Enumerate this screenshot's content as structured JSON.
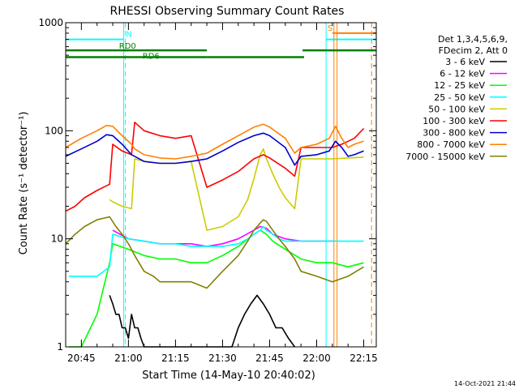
{
  "chart_data": {
    "type": "line",
    "title": "RHESSI Observing Summary Count Rates",
    "xlabel": "Start Time (14-May-10 20:40:02)",
    "ylabel": "Count Rate (s⁻¹ detector⁻¹)",
    "yscale": "log",
    "ylim": [
      1,
      1000
    ],
    "xlim_minutes_after_start": [
      0,
      99
    ],
    "x_tick_labels": [
      "20:45",
      "21:00",
      "21:15",
      "21:30",
      "21:45",
      "22:00",
      "22:15"
    ],
    "x_tick_minutes": [
      5,
      20,
      35,
      50,
      65,
      80,
      95
    ],
    "y_tick_labels": [
      "1",
      "10",
      "100",
      "1000"
    ],
    "y_tick_values": [
      1,
      10,
      100,
      1000
    ],
    "footer_date": "14-Oct-2021 21:44",
    "legend_header": [
      "Det 1,3,4,5,6,9,",
      "FDecim 2, Att 0"
    ],
    "legend_placement": "right",
    "annotations": {
      "night_label": "N",
      "saa_label": "S",
      "rd0_label": "RD0",
      "rd6_label": "RD6",
      "night_color": "#00ffff",
      "saa_color": "#ff8000",
      "rd_color": "#008000",
      "night_intervals": [
        [
          0,
          18.5
        ],
        [
          83,
          99
        ]
      ],
      "night_dashed_at": [
        19
      ],
      "saa_interval": [
        85,
        99
      ],
      "saa_lines_at": [
        85.5,
        86.5,
        97.5
      ],
      "rd0_intervals": [
        [
          0,
          45
        ],
        [
          75.5,
          99
        ]
      ],
      "rd6_intervals": [
        [
          0,
          45
        ],
        [
          45,
          76
        ]
      ]
    },
    "series": [
      {
        "name": "3 - 6 keV",
        "color": "#000000",
        "x": [
          14,
          15,
          16,
          17,
          18,
          19,
          20,
          21,
          22,
          23,
          24,
          25,
          26,
          27,
          53,
          55,
          57,
          59,
          61,
          63,
          65,
          67,
          69,
          71,
          73
        ],
        "y": [
          3,
          2.5,
          2,
          2,
          1.5,
          1.5,
          1.2,
          2,
          1.5,
          1.5,
          1.2,
          1,
          1,
          1,
          1,
          1.5,
          2,
          2.5,
          3,
          2.5,
          2,
          1.5,
          1.5,
          1.2,
          1
        ]
      },
      {
        "name": "6 - 12 keV",
        "color": "#ff00ff",
        "x": [
          15,
          20,
          25,
          30,
          35,
          40,
          45,
          50,
          55,
          60,
          62,
          64,
          66,
          70,
          75,
          80,
          85,
          86
        ],
        "y": [
          12,
          10,
          9.5,
          9,
          9,
          9,
          8.5,
          9,
          10,
          12,
          13,
          12.5,
          11,
          10,
          9.5,
          9.5,
          9.5,
          9.5
        ]
      },
      {
        "name": "12 - 25 keV",
        "color": "#00ff00",
        "x": [
          1,
          2,
          5,
          10,
          14,
          15,
          20,
          25,
          30,
          35,
          40,
          45,
          50,
          55,
          60,
          62,
          64,
          66,
          70,
          75,
          80,
          85,
          90,
          95
        ],
        "y": [
          1,
          1,
          1,
          2,
          6,
          9,
          8,
          7,
          6.5,
          6.5,
          6,
          6,
          7,
          8.5,
          11,
          12,
          11,
          9.5,
          8,
          6.5,
          6,
          6,
          5.5,
          6
        ]
      },
      {
        "name": "25 - 50 keV",
        "color": "#00ffff",
        "x": [
          1,
          5,
          10,
          14,
          15,
          20,
          25,
          30,
          35,
          40,
          45,
          50,
          55,
          58,
          60,
          62,
          63,
          64,
          66,
          68,
          70,
          73,
          75,
          80,
          85,
          90,
          95
        ],
        "y": [
          4.5,
          4.5,
          4.5,
          5.5,
          11,
          10,
          9.5,
          9,
          9,
          8.5,
          8.5,
          8.5,
          9,
          10,
          11,
          12,
          13,
          12,
          11,
          10,
          9.5,
          9.5,
          9.5,
          9.5,
          9.5,
          9.5,
          9.5
        ]
      },
      {
        "name": "50 - 100 keV",
        "color": "#cccc00",
        "x": [
          14,
          15,
          18,
          21,
          22,
          25,
          30,
          35,
          40,
          45,
          50,
          55,
          58,
          60,
          62,
          63,
          64,
          66,
          68,
          70,
          73,
          75,
          80,
          85,
          90,
          95
        ],
        "y": [
          23,
          22,
          20,
          19,
          55,
          52,
          50,
          50,
          52,
          12,
          13,
          16,
          23,
          36,
          60,
          68,
          55,
          40,
          30,
          24,
          19,
          55,
          55,
          55,
          56,
          57
        ]
      },
      {
        "name": "100 - 300 keV",
        "color": "#ff0000",
        "x": [
          0,
          3,
          6,
          10,
          14,
          15,
          18,
          21,
          22,
          25,
          30,
          35,
          40,
          45,
          50,
          55,
          60,
          63,
          65,
          70,
          73,
          75,
          80,
          85,
          88,
          90,
          92,
          95
        ],
        "y": [
          18,
          20,
          24,
          28,
          32,
          75,
          65,
          60,
          120,
          100,
          90,
          85,
          90,
          30,
          35,
          42,
          55,
          60,
          56,
          45,
          38,
          70,
          70,
          70,
          75,
          80,
          85,
          105
        ]
      },
      {
        "name": "300 - 800 keV",
        "color": "#0000cc",
        "x": [
          0,
          5,
          10,
          13,
          15,
          18,
          21,
          22,
          25,
          30,
          35,
          40,
          45,
          50,
          55,
          60,
          63,
          65,
          70,
          73,
          75,
          80,
          84,
          86,
          88,
          90,
          92,
          95
        ],
        "y": [
          58,
          68,
          80,
          92,
          90,
          75,
          60,
          58,
          52,
          50,
          50,
          52,
          55,
          65,
          78,
          90,
          95,
          90,
          70,
          48,
          58,
          60,
          65,
          80,
          70,
          58,
          60,
          65
        ]
      },
      {
        "name": "800 - 7000 keV",
        "color": "#ff8000",
        "x": [
          0,
          5,
          10,
          13,
          15,
          18,
          21,
          22,
          25,
          30,
          35,
          40,
          45,
          50,
          55,
          60,
          63,
          65,
          70,
          73,
          75,
          80,
          84,
          86,
          88,
          90,
          92,
          95
        ],
        "y": [
          70,
          85,
          100,
          112,
          110,
          90,
          75,
          68,
          60,
          56,
          55,
          58,
          62,
          75,
          90,
          108,
          115,
          108,
          85,
          62,
          70,
          75,
          85,
          110,
          85,
          70,
          75,
          80
        ]
      },
      {
        "name": "7000 - 15000 keV",
        "color": "#808000",
        "x": [
          0,
          3,
          6,
          10,
          14,
          16,
          18,
          20,
          22,
          25,
          28,
          30,
          35,
          40,
          45,
          50,
          55,
          58,
          60,
          62,
          63,
          64,
          66,
          68,
          70,
          73,
          75,
          80,
          85,
          90,
          95
        ],
        "y": [
          9,
          11,
          13,
          15,
          16,
          13,
          11,
          9,
          7,
          5,
          4.5,
          4,
          4,
          4,
          3.5,
          5,
          7,
          9.5,
          12,
          14,
          15,
          14.5,
          12,
          10,
          8.5,
          6.5,
          5,
          4.5,
          4,
          4.5,
          5.5
        ]
      }
    ]
  }
}
